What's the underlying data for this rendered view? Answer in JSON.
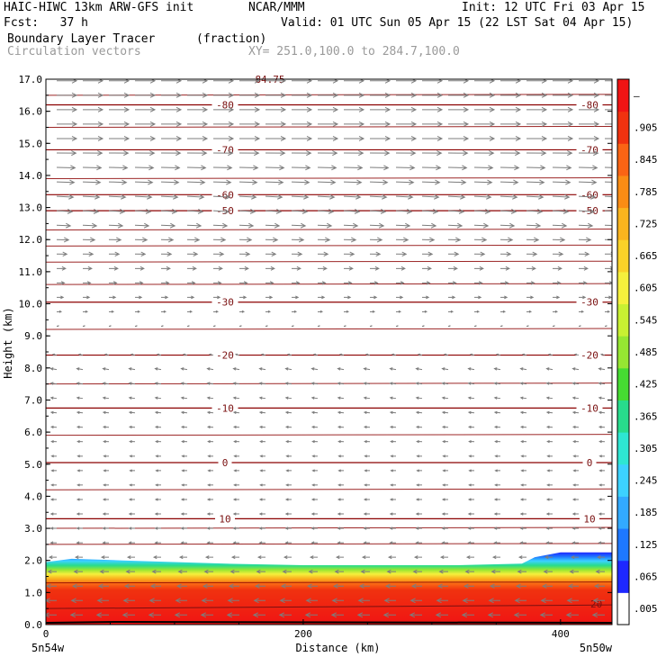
{
  "header": {
    "model": "HAIC-HIWC 13km ARW-GFS init",
    "org": "NCAR/MMM",
    "init": "Init: 12 UTC Fri 03 Apr 15",
    "fcst": "Fcst:   37 h",
    "valid": "Valid: 01 UTC Sun 05 Apr 15 (22 LST Sat 04 Apr 15)",
    "field": "Boundary Layer Tracer",
    "units": "(fraction)",
    "vectors": "Circulation vectors",
    "xy": "XY= 251.0,100.0 to 284.7,100.0"
  },
  "chart_data": {
    "type": "heatmap",
    "ylabel": "Height (km)",
    "xlabel": "Distance (km)",
    "ylim": [
      0,
      17
    ],
    "xlim": [
      0,
      440
    ],
    "y_ticks": [
      0.0,
      1.0,
      2.0,
      3.0,
      4.0,
      5.0,
      6.0,
      7.0,
      8.0,
      9.0,
      10.0,
      11.0,
      12.0,
      13.0,
      14.0,
      15.0,
      16.0,
      17.0
    ],
    "x_ticks": [
      0,
      200,
      400
    ],
    "x_end_labels": {
      "left": "5n54w",
      "right": "5n50w"
    },
    "colorbar": {
      "labels": [
        ".005",
        ".065",
        ".125",
        ".185",
        ".245",
        ".305",
        ".365",
        ".425",
        ".485",
        ".545",
        ".605",
        ".665",
        ".725",
        ".785",
        ".845",
        ".905",
        "–"
      ],
      "colors": [
        "#ffffff",
        "#1e28ff",
        "#1e78ff",
        "#32aaff",
        "#3cd2ff",
        "#2ee6d2",
        "#28dc8c",
        "#46dc32",
        "#96e632",
        "#c8f032",
        "#f5f03c",
        "#fad228",
        "#fab41e",
        "#fa8c14",
        "#fa6414",
        "#f0320f",
        "#f01414"
      ]
    },
    "tracer_top_km": [
      {
        "x": 0,
        "top": 1.95
      },
      {
        "x": 20,
        "top": 2.05
      },
      {
        "x": 60,
        "top": 2.0
      },
      {
        "x": 100,
        "top": 1.95
      },
      {
        "x": 140,
        "top": 1.9
      },
      {
        "x": 200,
        "top": 1.85
      },
      {
        "x": 260,
        "top": 1.85
      },
      {
        "x": 320,
        "top": 1.85
      },
      {
        "x": 370,
        "top": 1.9
      },
      {
        "x": 380,
        "top": 2.1
      },
      {
        "x": 400,
        "top": 2.25
      },
      {
        "x": 440,
        "top": 2.25
      }
    ],
    "temperature_contours_c": [
      {
        "value": 10,
        "height_km": 3.3
      },
      {
        "value": 0,
        "height_km": 5.05
      },
      {
        "value": -10,
        "height_km": 6.75
      },
      {
        "value": -20,
        "height_km": 8.4
      },
      {
        "value": -30,
        "height_km": 10.05
      },
      {
        "value": -50,
        "height_km": 12.9
      },
      {
        "value": -60,
        "height_km": 13.4
      },
      {
        "value": -70,
        "height_km": 14.8
      },
      {
        "value": -80,
        "height_km": 16.2
      },
      {
        "value": 20,
        "height_km": 0.5
      }
    ],
    "theta_lines_km": [
      1.3,
      2.5,
      3.0,
      4.2,
      5.9,
      7.5,
      9.2,
      10.6,
      11.3,
      11.8,
      12.3,
      13.9,
      15.5,
      16.5
    ],
    "top_partial_label": "84.75",
    "wind_profile": [
      {
        "height_km": 0.5,
        "u": -0.6,
        "v": 0.0
      },
      {
        "height_km": 2.5,
        "u": -0.3,
        "v": 0.0
      },
      {
        "height_km": 5.0,
        "u": -0.25,
        "v": 0.0
      },
      {
        "height_km": 8.0,
        "u": -0.3,
        "v": 0.05
      },
      {
        "height_km": 10.0,
        "u": 0.3,
        "v": 0.0
      },
      {
        "height_km": 11.5,
        "u": 0.5,
        "v": 0.0
      },
      {
        "height_km": 13.0,
        "u": 0.8,
        "v": -0.05
      },
      {
        "height_km": 15.0,
        "u": 1.0,
        "v": 0.0
      },
      {
        "height_km": 17.0,
        "u": 1.0,
        "v": 0.0
      }
    ]
  }
}
